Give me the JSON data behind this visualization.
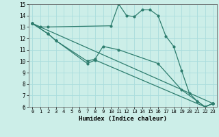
{
  "bg_color": "#cceee8",
  "line_color": "#2e7d6e",
  "grid_color": "#aadddd",
  "xlabel": "Humidex (Indice chaleur)",
  "xlim": [
    -0.5,
    23.5
  ],
  "ylim": [
    6,
    15
  ],
  "xticks": [
    0,
    1,
    2,
    3,
    4,
    5,
    6,
    7,
    8,
    9,
    10,
    11,
    12,
    13,
    14,
    15,
    16,
    17,
    18,
    19,
    20,
    21,
    22,
    23
  ],
  "yticks": [
    6,
    7,
    8,
    9,
    10,
    11,
    12,
    13,
    14,
    15
  ],
  "lines": [
    {
      "x": [
        0,
        1,
        2,
        10,
        11,
        12,
        13,
        14,
        15,
        16,
        17,
        18,
        19,
        20,
        21,
        22,
        23
      ],
      "y": [
        13.3,
        13.0,
        13.0,
        13.1,
        15.0,
        14.0,
        13.9,
        14.5,
        14.5,
        14.0,
        12.2,
        11.3,
        9.2,
        7.2,
        6.5,
        6.0,
        6.3
      ]
    },
    {
      "x": [
        0,
        2,
        3,
        7,
        8,
        9,
        11,
        16,
        19,
        21,
        22,
        23
      ],
      "y": [
        13.3,
        12.4,
        11.8,
        10.0,
        10.2,
        11.3,
        11.0,
        9.8,
        7.5,
        6.5,
        6.0,
        6.3
      ]
    },
    {
      "x": [
        0,
        2,
        3,
        7,
        8,
        22,
        23
      ],
      "y": [
        13.3,
        12.4,
        11.8,
        9.8,
        10.1,
        6.0,
        6.3
      ]
    },
    {
      "x": [
        0,
        23
      ],
      "y": [
        13.3,
        6.3
      ]
    }
  ]
}
